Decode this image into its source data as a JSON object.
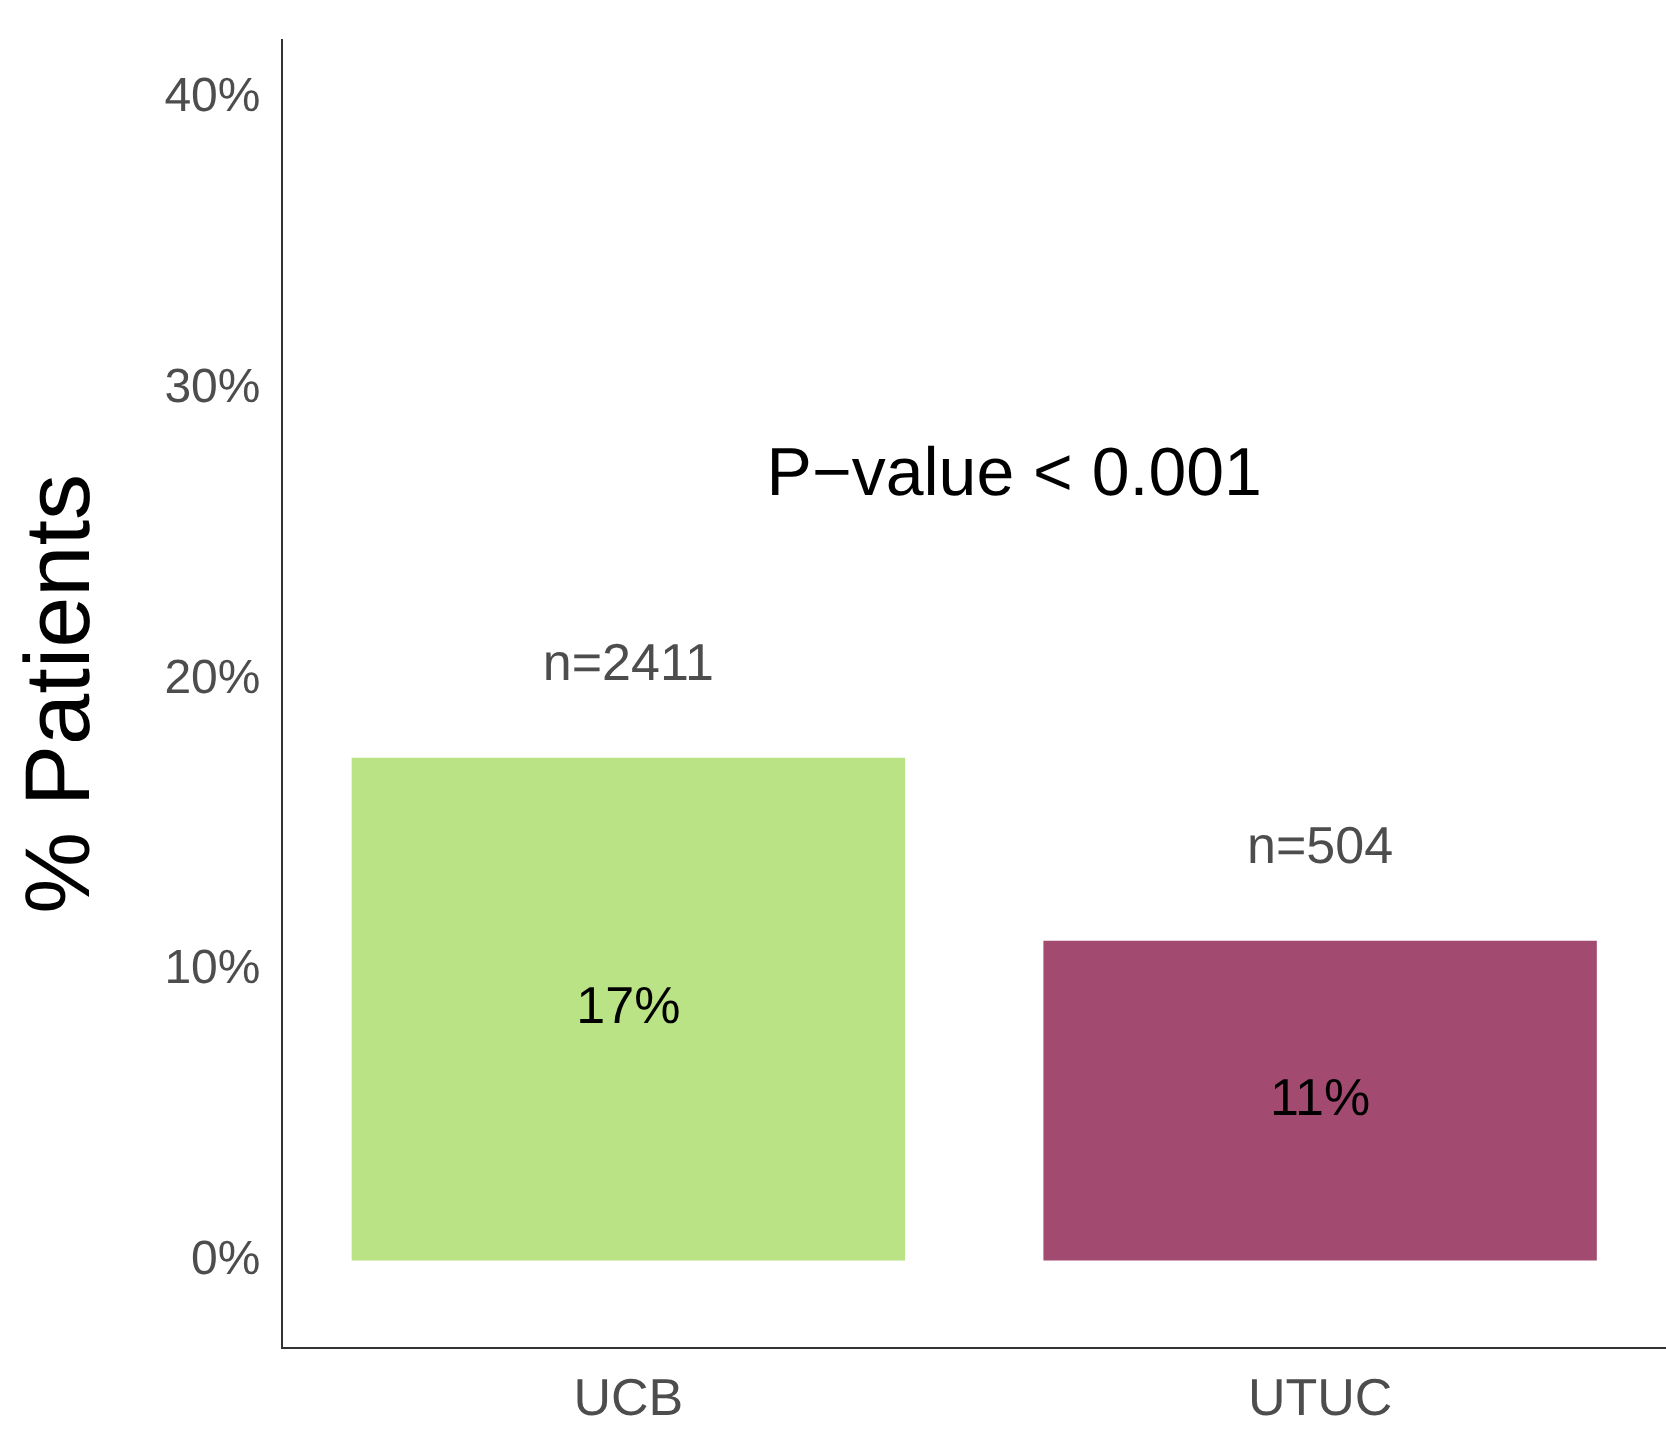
{
  "chart_data": {
    "type": "bar",
    "ylabel": "% Patients",
    "categories": [
      "UCB",
      "UTUC"
    ],
    "values": [
      17.3,
      11.0
    ],
    "colors": [
      "#b9e384",
      "#a34a70"
    ],
    "value_labels": [
      "17%",
      "11%"
    ],
    "ylim": [
      -3,
      42
    ],
    "yticks": [
      {
        "value": 0,
        "label": "0%"
      },
      {
        "value": 10,
        "label": "10%"
      },
      {
        "value": 20,
        "label": "20%"
      },
      {
        "value": 30,
        "label": "30%"
      },
      {
        "value": 40,
        "label": "40%"
      }
    ],
    "grid": false,
    "legend": false,
    "annotations": [
      "n=2411",
      "n=504",
      "P−value < 0.001"
    ]
  }
}
